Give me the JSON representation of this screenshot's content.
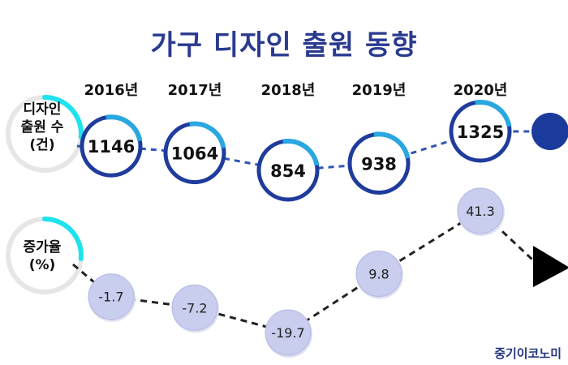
{
  "title": "가구 디자인 출원 동향",
  "source": "중기이코노미",
  "chart_data": [
    {
      "type": "line",
      "label_lines": [
        "디자인",
        "출원 수",
        "(건)"
      ],
      "categories": [
        "2016년",
        "2017년",
        "2018년",
        "2019년",
        "2020년"
      ],
      "values": [
        1146,
        1064,
        854,
        938,
        1325
      ]
    },
    {
      "type": "line",
      "label_lines": [
        "증가율",
        "(%)"
      ],
      "categories": [
        "2016년",
        "2017년",
        "2018년",
        "2019년",
        "2020년"
      ],
      "values": [
        -1.7,
        -7.2,
        -19.7,
        9.8,
        41.3
      ]
    }
  ],
  "colors": {
    "title": "#2a3a8f",
    "ring_dark": "#1f3c9c",
    "ring_light": "#2aa7e0",
    "dash_blue": "#2f56b5",
    "bubble": "#c9cdee",
    "bubble_edge": "#b3b8e2",
    "cyan": "#1ee3ef",
    "navy_dot": "#1a3a9c",
    "arrow": "#000000"
  }
}
